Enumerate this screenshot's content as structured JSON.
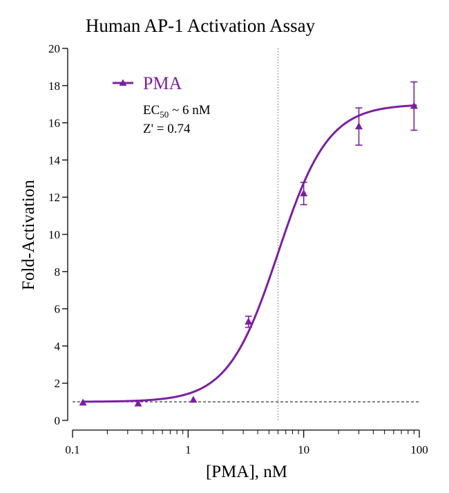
{
  "colors": {
    "series": "#7a1fa2",
    "axis": "#000000",
    "reference": "#333333"
  },
  "chart_data": {
    "type": "line",
    "title": "Human AP-1 Activation Assay",
    "xlabel": "[PMA], nM",
    "ylabel": "Fold-Activation",
    "xscale": "log",
    "xlim": [
      0.1,
      100
    ],
    "ylim": [
      0,
      20
    ],
    "x_ticks": [
      "0.1",
      "1",
      "10",
      "100"
    ],
    "y_ticks": [
      "0",
      "2",
      "4",
      "6",
      "8",
      "10",
      "12",
      "14",
      "16",
      "18",
      "20"
    ],
    "legend_position": "top-left",
    "series": [
      {
        "name": "PMA",
        "marker": "triangle",
        "x": [
          0.123,
          0.37,
          1.11,
          3.33,
          10,
          30,
          90
        ],
        "y": [
          0.95,
          0.9,
          1.1,
          5.3,
          12.2,
          15.8,
          16.9
        ],
        "err": [
          0,
          0,
          0,
          0.3,
          0.6,
          1.0,
          1.3
        ]
      }
    ],
    "fit": {
      "bottom": 1.0,
      "top": 17.0,
      "ec50": 6.0,
      "hill": 2.0
    },
    "reference_lines": {
      "horizontal_y": 1.0,
      "vertical_x": 6.0
    },
    "annotations": {
      "ec50_main": "EC",
      "ec50_sub": "50",
      "ec50_rest": " ~ 6 nM",
      "zprime": "Z' = 0.74"
    }
  }
}
